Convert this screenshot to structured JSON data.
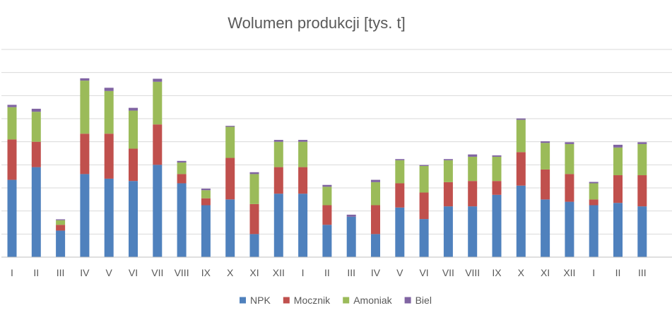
{
  "chart_data": {
    "type": "bar",
    "stacked": true,
    "title": "Wolumen produkcji [tys. t]",
    "xlabel": "",
    "ylabel": "",
    "categories": [
      "I",
      "II",
      "III",
      "IV",
      "V",
      "VI",
      "VII",
      "VIII",
      "IX",
      "X",
      "XI",
      "XII",
      "I",
      "II",
      "III",
      "IV",
      "V",
      "VI",
      "VII",
      "VIII",
      "IX",
      "X",
      "XI",
      "XII",
      "I",
      "II",
      "III"
    ],
    "series": [
      {
        "name": "NPK",
        "color": "#4f81bd",
        "values": [
          33.5,
          39,
          11.5,
          36,
          34,
          33,
          40,
          32,
          22.5,
          25,
          10,
          27.5,
          27.5,
          14,
          17.5,
          10,
          21.5,
          16.5,
          22,
          22,
          27,
          31,
          25,
          24,
          22.5,
          23.5,
          22
        ]
      },
      {
        "name": "Mocznik",
        "color": "#c0504d",
        "values": [
          17.5,
          11,
          2.5,
          17.5,
          19.5,
          14,
          17.5,
          4,
          3,
          18,
          13,
          11.5,
          11.5,
          8.5,
          0,
          12.5,
          10.5,
          11.5,
          10.5,
          11,
          6,
          14.5,
          13,
          12,
          2.5,
          12,
          13.5
        ]
      },
      {
        "name": "Amoniak",
        "color": "#9bbb59",
        "values": [
          14,
          13,
          2,
          23,
          18.5,
          16.5,
          18.5,
          5,
          3.5,
          13.5,
          13,
          11,
          11,
          8,
          0,
          10,
          10,
          11.5,
          9.5,
          10.5,
          10.5,
          14,
          11.5,
          13,
          7,
          12,
          13.5
        ]
      },
      {
        "name": "Biel",
        "color": "#8064a2",
        "values": [
          1,
          1.3,
          0.4,
          1,
          1.4,
          1.2,
          1.3,
          0.7,
          0.7,
          0.4,
          0.8,
          0.8,
          0.8,
          0.8,
          0.9,
          1,
          0.5,
          0.4,
          0.5,
          1,
          0.6,
          0.6,
          0.7,
          0.8,
          0.6,
          1.2,
          0.8
        ]
      }
    ],
    "ylim": [
      0,
      90
    ],
    "grid": true,
    "legend_position": "bottom"
  }
}
